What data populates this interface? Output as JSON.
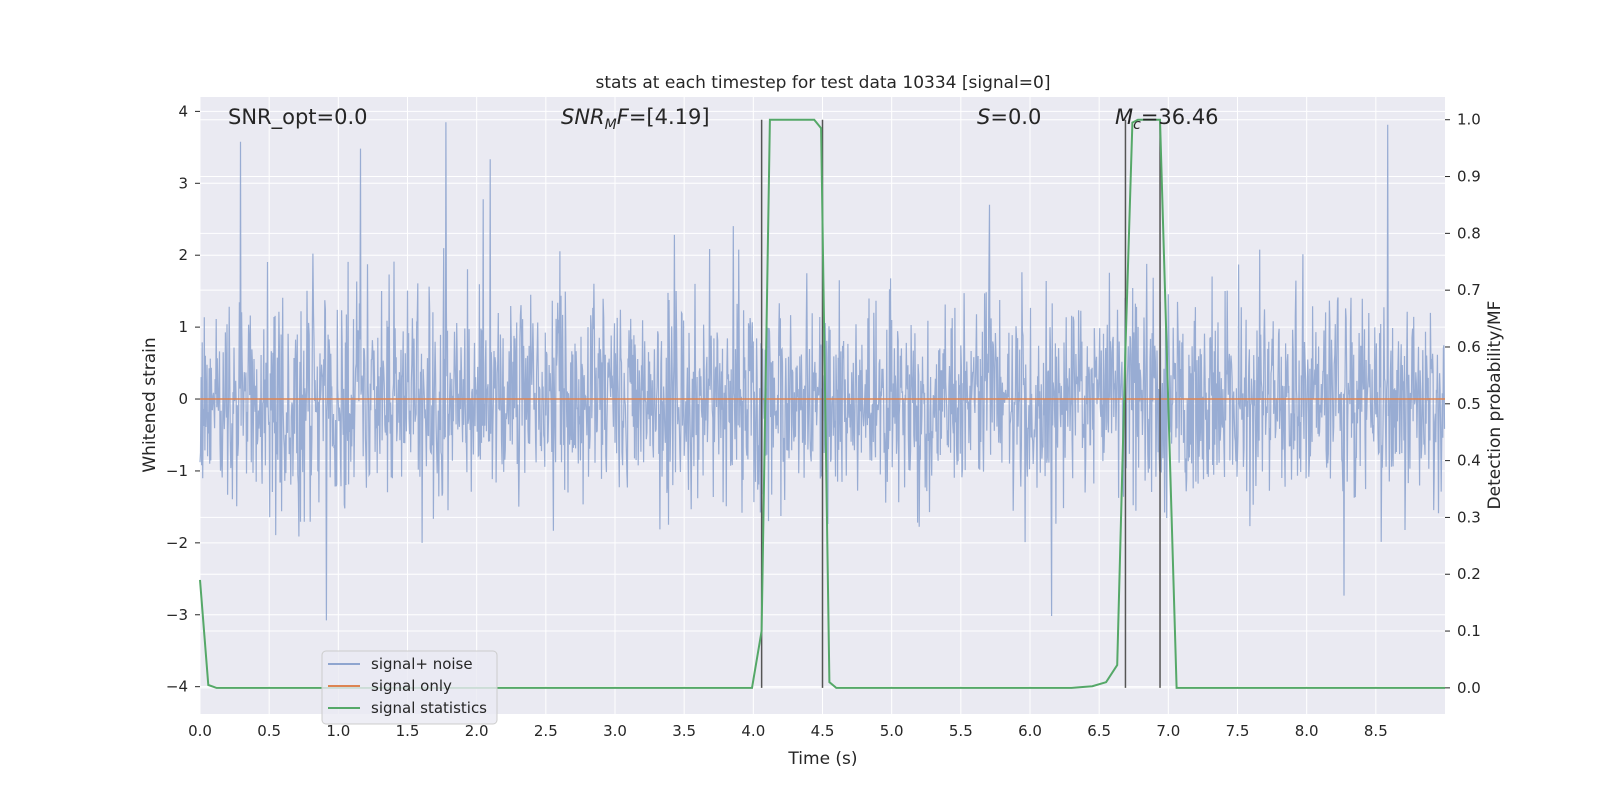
{
  "chart_data": {
    "type": "line",
    "title": "stats at each timestep for test data 10334 [signal=0]",
    "xlabel": "Time (s)",
    "ylabel_left": "Whitened strain",
    "ylabel_right": "Detection probability/MF",
    "xlim": [
      0.0,
      9.0
    ],
    "ylim_left": [
      -4.38,
      4.2
    ],
    "ylim_right": [
      -0.046,
      1.04
    ],
    "x_ticks": [
      "0.0",
      "0.5",
      "1.0",
      "1.5",
      "2.0",
      "2.5",
      "3.0",
      "3.5",
      "4.0",
      "4.5",
      "5.0",
      "5.5",
      "6.0",
      "6.5",
      "7.0",
      "7.5",
      "8.0",
      "8.5"
    ],
    "y_ticks_left": [
      "4",
      "3",
      "2",
      "1",
      "0",
      "−1",
      "−2",
      "−3",
      "−4"
    ],
    "y_ticks_right": [
      "1.0",
      "0.9",
      "0.8",
      "0.7",
      "0.6",
      "0.5",
      "0.4",
      "0.3",
      "0.2",
      "0.1",
      "0.0"
    ],
    "grid": true,
    "legend_position": "lower-left",
    "annotations": {
      "snr_opt": "SNR_opt=0.0",
      "snr_mf_main": "SNR",
      "snr_mf_sub": "M",
      "snr_mf_main2": "F",
      "snr_mf_value": "=[4.19]",
      "s_sym": "S",
      "s_value": "=0.0",
      "mc_sym": "M",
      "mc_sub": "c",
      "mc_value": "=36.46"
    },
    "series": [
      {
        "name": "signal+ noise",
        "color": "#8fa5cf",
        "kind": "noise",
        "sample_rate": 256,
        "sigma": 0.68,
        "duration": 9.0,
        "axis": "left"
      },
      {
        "name": "signal only",
        "color": "#dd8452",
        "axis": "left",
        "x": [
          0.0,
          9.0
        ],
        "y": [
          0.0,
          0.0
        ]
      },
      {
        "name": "signal statistics",
        "color": "#55a868",
        "axis": "right",
        "x": [
          0.0,
          0.06,
          0.12,
          0.5,
          1.0,
          1.5,
          2.0,
          2.5,
          3.0,
          3.5,
          3.99,
          4.06,
          4.12,
          4.2,
          4.3,
          4.44,
          4.49,
          4.55,
          4.6,
          5.0,
          5.5,
          6.0,
          6.3,
          6.45,
          6.55,
          6.63,
          6.69,
          6.74,
          6.78,
          6.82,
          6.88,
          6.94,
          7.0,
          7.06,
          7.5,
          8.0,
          8.5,
          9.0
        ],
        "y": [
          0.19,
          0.005,
          0.0,
          0.0,
          0.0,
          0.0,
          0.0,
          0.0,
          0.0,
          0.0,
          0.0,
          0.1,
          1.0,
          1.0,
          1.0,
          1.0,
          0.985,
          0.01,
          0.0,
          0.0,
          0.0,
          0.0,
          0.0,
          0.003,
          0.01,
          0.04,
          0.6,
          0.995,
          1.0,
          1.0,
          1.0,
          1.0,
          0.5,
          0.0,
          0.0,
          0.0,
          0.0,
          0.0
        ]
      }
    ],
    "vlines": [
      {
        "x": 4.06,
        "y_right": [
          0.0,
          1.0
        ],
        "color": "#555555"
      },
      {
        "x": 4.5,
        "y_right": [
          0.0,
          1.0
        ],
        "color": "#555555"
      },
      {
        "x": 6.69,
        "y_right": [
          0.0,
          1.0
        ],
        "color": "#555555"
      },
      {
        "x": 6.94,
        "y_right": [
          0.0,
          1.0
        ],
        "color": "#555555"
      }
    ],
    "colors": {
      "plot_bg": "#eaeaf2",
      "grid": "#ffffff",
      "text": "#262626",
      "legend_bg": "#eaeaf2",
      "legend_border": "#cccccc"
    }
  }
}
